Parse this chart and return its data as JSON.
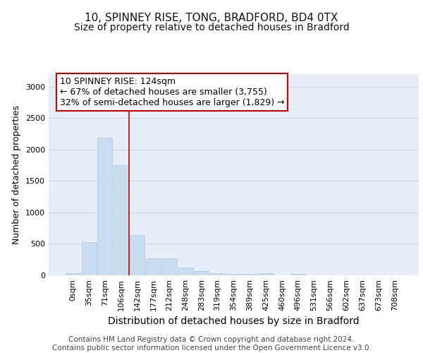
{
  "title1": "10, SPINNEY RISE, TONG, BRADFORD, BD4 0TX",
  "title2": "Size of property relative to detached houses in Bradford",
  "xlabel": "Distribution of detached houses by size in Bradford",
  "ylabel": "Number of detached properties",
  "categories": [
    "0sqm",
    "35sqm",
    "71sqm",
    "106sqm",
    "142sqm",
    "177sqm",
    "212sqm",
    "248sqm",
    "283sqm",
    "319sqm",
    "354sqm",
    "389sqm",
    "425sqm",
    "460sqm",
    "496sqm",
    "531sqm",
    "566sqm",
    "602sqm",
    "637sqm",
    "673sqm",
    "708sqm"
  ],
  "values": [
    30,
    525,
    2195,
    1750,
    640,
    270,
    270,
    120,
    70,
    35,
    25,
    25,
    30,
    0,
    20,
    0,
    0,
    0,
    0,
    0,
    0
  ],
  "bar_color": "#c9ddf0",
  "bar_edge_color": "#a8c4e0",
  "grid_color": "#c8d4e8",
  "background_color": "#e8eef8",
  "annotation_box_text": "10 SPINNEY RISE: 124sqm\n← 67% of detached houses are smaller (3,755)\n32% of semi-detached houses are larger (1,829) →",
  "red_line_x": 3.5,
  "ylim": [
    0,
    3200
  ],
  "yticks": [
    0,
    500,
    1000,
    1500,
    2000,
    2500,
    3000
  ],
  "footer_text": "Contains HM Land Registry data © Crown copyright and database right 2024.\nContains public sector information licensed under the Open Government Licence v3.0.",
  "title1_fontsize": 11,
  "title2_fontsize": 10,
  "xlabel_fontsize": 10,
  "ylabel_fontsize": 9,
  "tick_fontsize": 8,
  "annotation_fontsize": 9,
  "footer_fontsize": 7.5
}
